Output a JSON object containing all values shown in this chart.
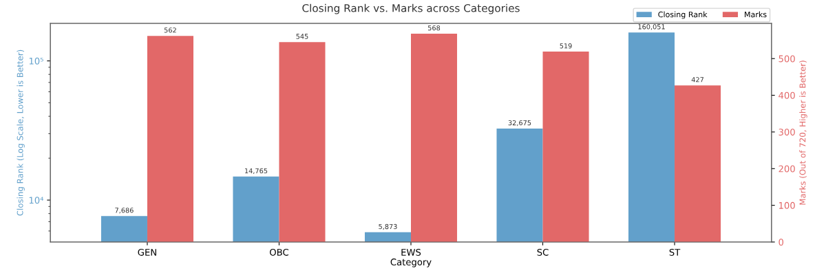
{
  "chart_data": {
    "type": "bar",
    "title": "Closing Rank vs. Marks across Categories",
    "xlabel": "Category",
    "ylabel": "Closing Rank (Log Scale, Lower is Better)",
    "y2label": "Marks (Out of 720, Higher is Better)",
    "categories": [
      "GEN",
      "OBC",
      "EWS",
      "SC",
      "ST"
    ],
    "series": [
      {
        "name": "Closing Rank",
        "color": "#62a0cb",
        "values": [
          7686,
          14765,
          5873,
          32675,
          160051
        ],
        "value_labels": [
          "7,686",
          "14,765",
          "5,873",
          "32,675",
          "160,051"
        ]
      },
      {
        "name": "Marks",
        "color": "#e26868",
        "axis": "y2",
        "values": [
          562,
          545,
          568,
          519,
          427
        ],
        "value_labels": [
          "562",
          "545",
          "568",
          "519",
          "427"
        ]
      }
    ],
    "log": "y",
    "ylim": [
      5000,
      186000
    ],
    "yticks": [
      {
        "value": 6000,
        "label": null
      },
      {
        "value": 7000,
        "label": null
      },
      {
        "value": 8000,
        "label": null
      },
      {
        "value": 9000,
        "label": null
      },
      {
        "value": 10000,
        "label": "10⁴"
      },
      {
        "value": 20000,
        "label": null
      },
      {
        "value": 30000,
        "label": null
      },
      {
        "value": 40000,
        "label": null
      },
      {
        "value": 50000,
        "label": null
      },
      {
        "value": 60000,
        "label": null
      },
      {
        "value": 70000,
        "label": null
      },
      {
        "value": 80000,
        "label": null
      },
      {
        "value": 90000,
        "label": null
      },
      {
        "value": 100000,
        "label": "10⁵"
      }
    ],
    "y2lim": [
      0,
      596
    ],
    "y2ticks": [
      0,
      100,
      200,
      300,
      400,
      500
    ],
    "legend": "top right"
  }
}
